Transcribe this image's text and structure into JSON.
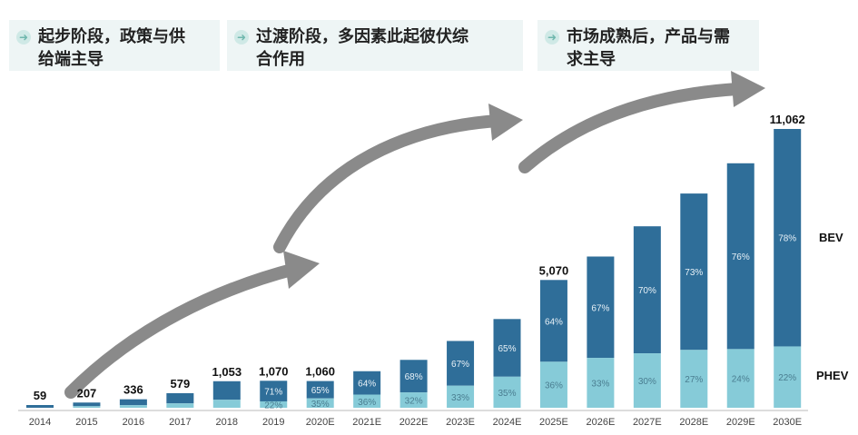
{
  "stages": [
    {
      "text": "起步阶段，政策与供\n给端主导"
    },
    {
      "text": "过渡阶段，多因素此起彼伏综\n合作用"
    },
    {
      "text": "市场成熟后，产品与需\n求主导"
    }
  ],
  "colors": {
    "bev": "#2f6e99",
    "phev": "#86cbd8",
    "arrow": "#8a8a8a",
    "stage_bg": "#eef5f5"
  },
  "chart_data": {
    "type": "bar",
    "stacked": true,
    "categories": [
      "2014",
      "2015",
      "2016",
      "2017",
      "2018",
      "2019",
      "2020E",
      "2021E",
      "2022E",
      "2023E",
      "2024E",
      "2025E",
      "2026E",
      "2027E",
      "2028E",
      "2029E",
      "2030E"
    ],
    "totals": [
      59,
      207,
      336,
      579,
      1053,
      1070,
      1060,
      null,
      null,
      null,
      null,
      5070,
      null,
      null,
      null,
      null,
      11062
    ],
    "total_labels": [
      "59",
      "207",
      "336",
      "579",
      "1,053",
      "1,070",
      "1,060",
      "",
      "",
      "",
      "",
      "5,070",
      "",
      "",
      "",
      "",
      "11,062"
    ],
    "series": [
      {
        "name": "BEV",
        "percent": [
          null,
          null,
          null,
          null,
          null,
          71,
          65,
          64,
          68,
          67,
          65,
          64,
          67,
          70,
          73,
          76,
          78
        ]
      },
      {
        "name": "PHEV",
        "percent": [
          null,
          null,
          null,
          null,
          null,
          22,
          35,
          36,
          32,
          33,
          35,
          36,
          33,
          30,
          27,
          24,
          22
        ]
      }
    ],
    "bev_labels": [
      "",
      "",
      "",
      "",
      "",
      "71%",
      "65%",
      "64%",
      "68%",
      "67%",
      "65%",
      "64%",
      "67%",
      "70%",
      "73%",
      "76%",
      "78%"
    ],
    "phev_labels": [
      "",
      "",
      "",
      "",
      "",
      "22%",
      "35%",
      "36%",
      "32%",
      "33%",
      "35%",
      "36%",
      "33%",
      "30%",
      "27%",
      "24%",
      "22%"
    ],
    "legend": {
      "bev": "BEV",
      "phev": "PHEV"
    },
    "ylim": [
      0,
      11062
    ]
  }
}
